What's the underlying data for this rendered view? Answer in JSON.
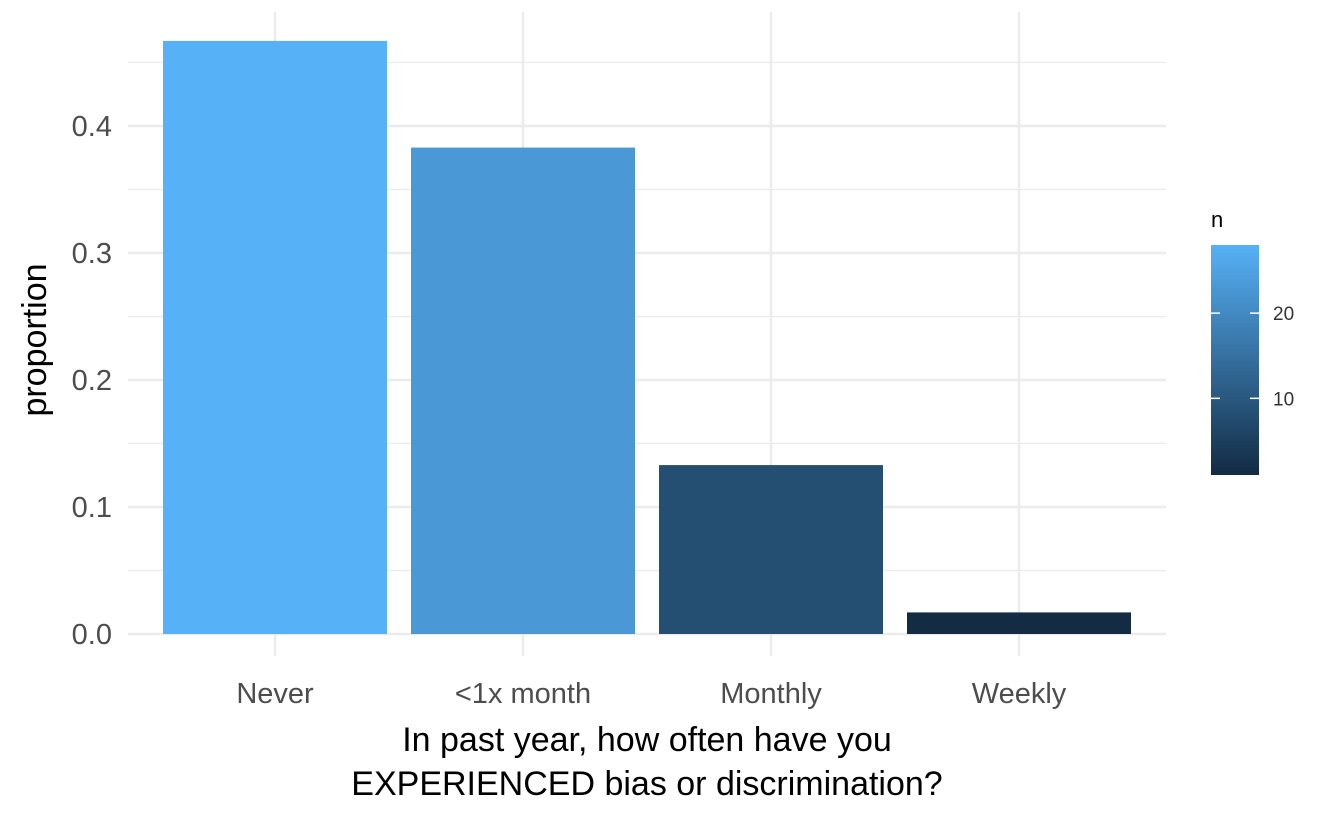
{
  "chart_data": {
    "type": "bar",
    "categories": [
      "Never",
      "<1x month",
      "Monthly",
      "Weekly"
    ],
    "values": [
      0.467,
      0.383,
      0.133,
      0.017
    ],
    "counts": [
      28,
      23,
      8,
      1
    ],
    "xlabel_lines": [
      "In past year, how often have you",
      "EXPERIENCED bias or discrimination?"
    ],
    "ylabel": "proportion",
    "ylim": [
      0,
      0.48
    ],
    "yticks": [
      0.0,
      0.1,
      0.2,
      0.3,
      0.4
    ],
    "ytick_labels": [
      "0.0",
      "0.1",
      "0.2",
      "0.3",
      "0.4"
    ],
    "grid": true,
    "legend": {
      "title": "n",
      "placement": "right",
      "type": "colorbar",
      "range": [
        1,
        28
      ],
      "ticks": [
        10,
        20
      ],
      "tick_labels": [
        "10",
        "20"
      ],
      "color_low": "#132B43",
      "color_high": "#56B1F7"
    }
  }
}
